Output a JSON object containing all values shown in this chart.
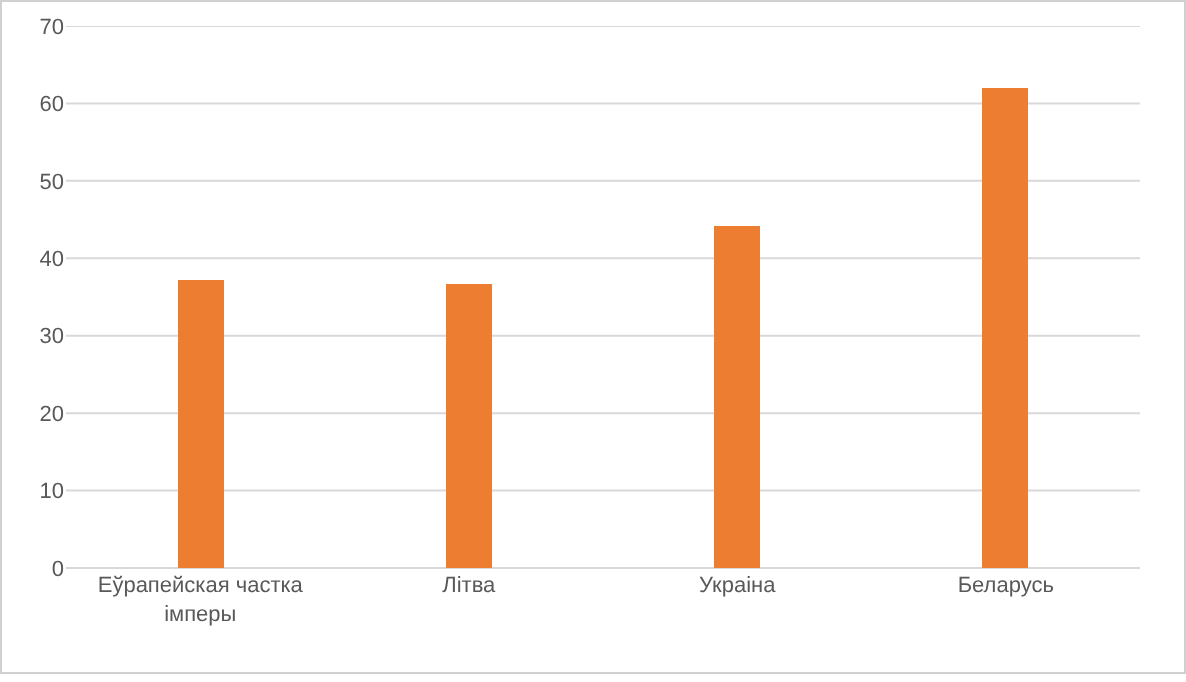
{
  "chart_data": {
    "type": "bar",
    "categories": [
      "Еўрапейская частка імперы",
      "Літва",
      "Украіна",
      "Беларусь"
    ],
    "values": [
      37.3,
      36.8,
      44.2,
      62
    ],
    "color": "#ed7d31",
    "ylim": [
      0,
      70
    ],
    "yticks": [
      0,
      10,
      20,
      30,
      40,
      50,
      60,
      70
    ],
    "grid": "y"
  }
}
